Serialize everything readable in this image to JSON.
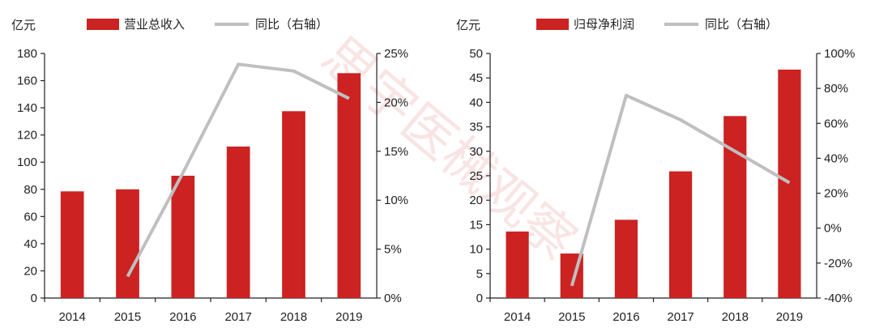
{
  "colors": {
    "bar": "#cc2222",
    "line": "#bfbfbf"
  },
  "watermark": "思宇医械观察",
  "chart_data": [
    {
      "type": "bar",
      "title": "",
      "unit_label": "亿元",
      "categories": [
        "2014",
        "2015",
        "2016",
        "2017",
        "2018",
        "2019"
      ],
      "y_left": {
        "range": [
          0,
          180
        ],
        "ticks": [
          0,
          20,
          40,
          60,
          80,
          100,
          120,
          140,
          160,
          180
        ]
      },
      "y_right": {
        "range": [
          0,
          25
        ],
        "ticks": [
          0,
          5,
          10,
          15,
          20,
          25
        ],
        "tick_labels": [
          "0%",
          "5%",
          "10%",
          "15%",
          "20%",
          "25%"
        ]
      },
      "series": [
        {
          "name": "营业总收入",
          "type": "bar",
          "axis": "left",
          "values": [
            78.5,
            80,
            90,
            111.5,
            137.5,
            165.5
          ]
        },
        {
          "name": "同比（右轴）",
          "type": "line",
          "axis": "right",
          "values": [
            null,
            2.2,
            12.8,
            23.9,
            23.2,
            20.4
          ]
        }
      ],
      "legend": "top"
    },
    {
      "type": "bar",
      "title": "",
      "unit_label": "亿元",
      "categories": [
        "2014",
        "2015",
        "2016",
        "2017",
        "2018",
        "2019"
      ],
      "y_left": {
        "range": [
          0,
          50
        ],
        "ticks": [
          0,
          5,
          10,
          15,
          20,
          25,
          30,
          35,
          40,
          45,
          50
        ]
      },
      "y_right": {
        "range": [
          -40,
          100
        ],
        "ticks": [
          -40,
          -20,
          0,
          20,
          40,
          60,
          80,
          100
        ],
        "tick_labels": [
          "-40%",
          "-20%",
          "0%",
          "20%",
          "40%",
          "60%",
          "80%",
          "100%"
        ]
      },
      "series": [
        {
          "name": "归母净利润",
          "type": "bar",
          "axis": "left",
          "values": [
            13.6,
            9.1,
            16,
            25.9,
            37.2,
            46.7
          ]
        },
        {
          "name": "同比（右轴）",
          "type": "line",
          "axis": "right",
          "values": [
            null,
            -33,
            76,
            62,
            44,
            26
          ]
        }
      ],
      "legend": "top"
    }
  ]
}
